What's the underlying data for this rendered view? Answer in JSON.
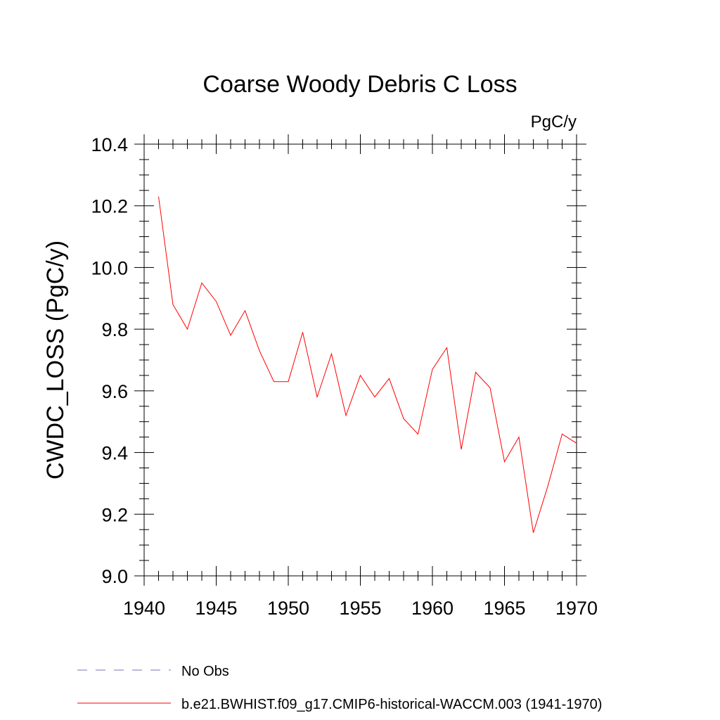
{
  "chart_data": {
    "type": "line",
    "title": "Coarse Woody Debris C Loss",
    "units_label": "PgC/y",
    "ylabel": "CWDC_LOSS  (PgC/y)",
    "xlabel": "",
    "xlim": [
      1940,
      1970
    ],
    "ylim": [
      9.0,
      10.4
    ],
    "x_ticks": [
      1940,
      1945,
      1950,
      1955,
      1960,
      1965,
      1970
    ],
    "y_ticks": [
      "9.0",
      "9.2",
      "9.4",
      "9.6",
      "9.8",
      "10.0",
      "10.2",
      "10.4"
    ],
    "grid": false,
    "legend_position": "bottom-left",
    "series": [
      {
        "name": "b.e21.BWHIST.f09_g17.CMIP6-historical-WACCM.003 (1941-1970)",
        "color": "#ff0000",
        "style": "solid",
        "x": [
          1941,
          1942,
          1943,
          1944,
          1945,
          1946,
          1947,
          1948,
          1949,
          1950,
          1951,
          1952,
          1953,
          1954,
          1955,
          1956,
          1957,
          1958,
          1959,
          1960,
          1961,
          1962,
          1963,
          1964,
          1965,
          1966,
          1967,
          1968,
          1969,
          1970
        ],
        "y": [
          10.23,
          9.88,
          9.8,
          9.95,
          9.89,
          9.78,
          9.86,
          9.73,
          9.63,
          9.63,
          9.79,
          9.58,
          9.72,
          9.52,
          9.65,
          9.58,
          9.64,
          9.51,
          9.46,
          9.67,
          9.74,
          9.41,
          9.66,
          9.61,
          9.37,
          9.45,
          9.14,
          9.29,
          9.46,
          9.43
        ]
      }
    ],
    "legend": [
      {
        "label": "No Obs",
        "color": "#7a6fb4",
        "style": "dashed"
      },
      {
        "label": "b.e21.BWHIST.f09_g17.CMIP6-historical-WACCM.003 (1941-1970)",
        "color": "#ff0000",
        "style": "solid"
      }
    ]
  }
}
